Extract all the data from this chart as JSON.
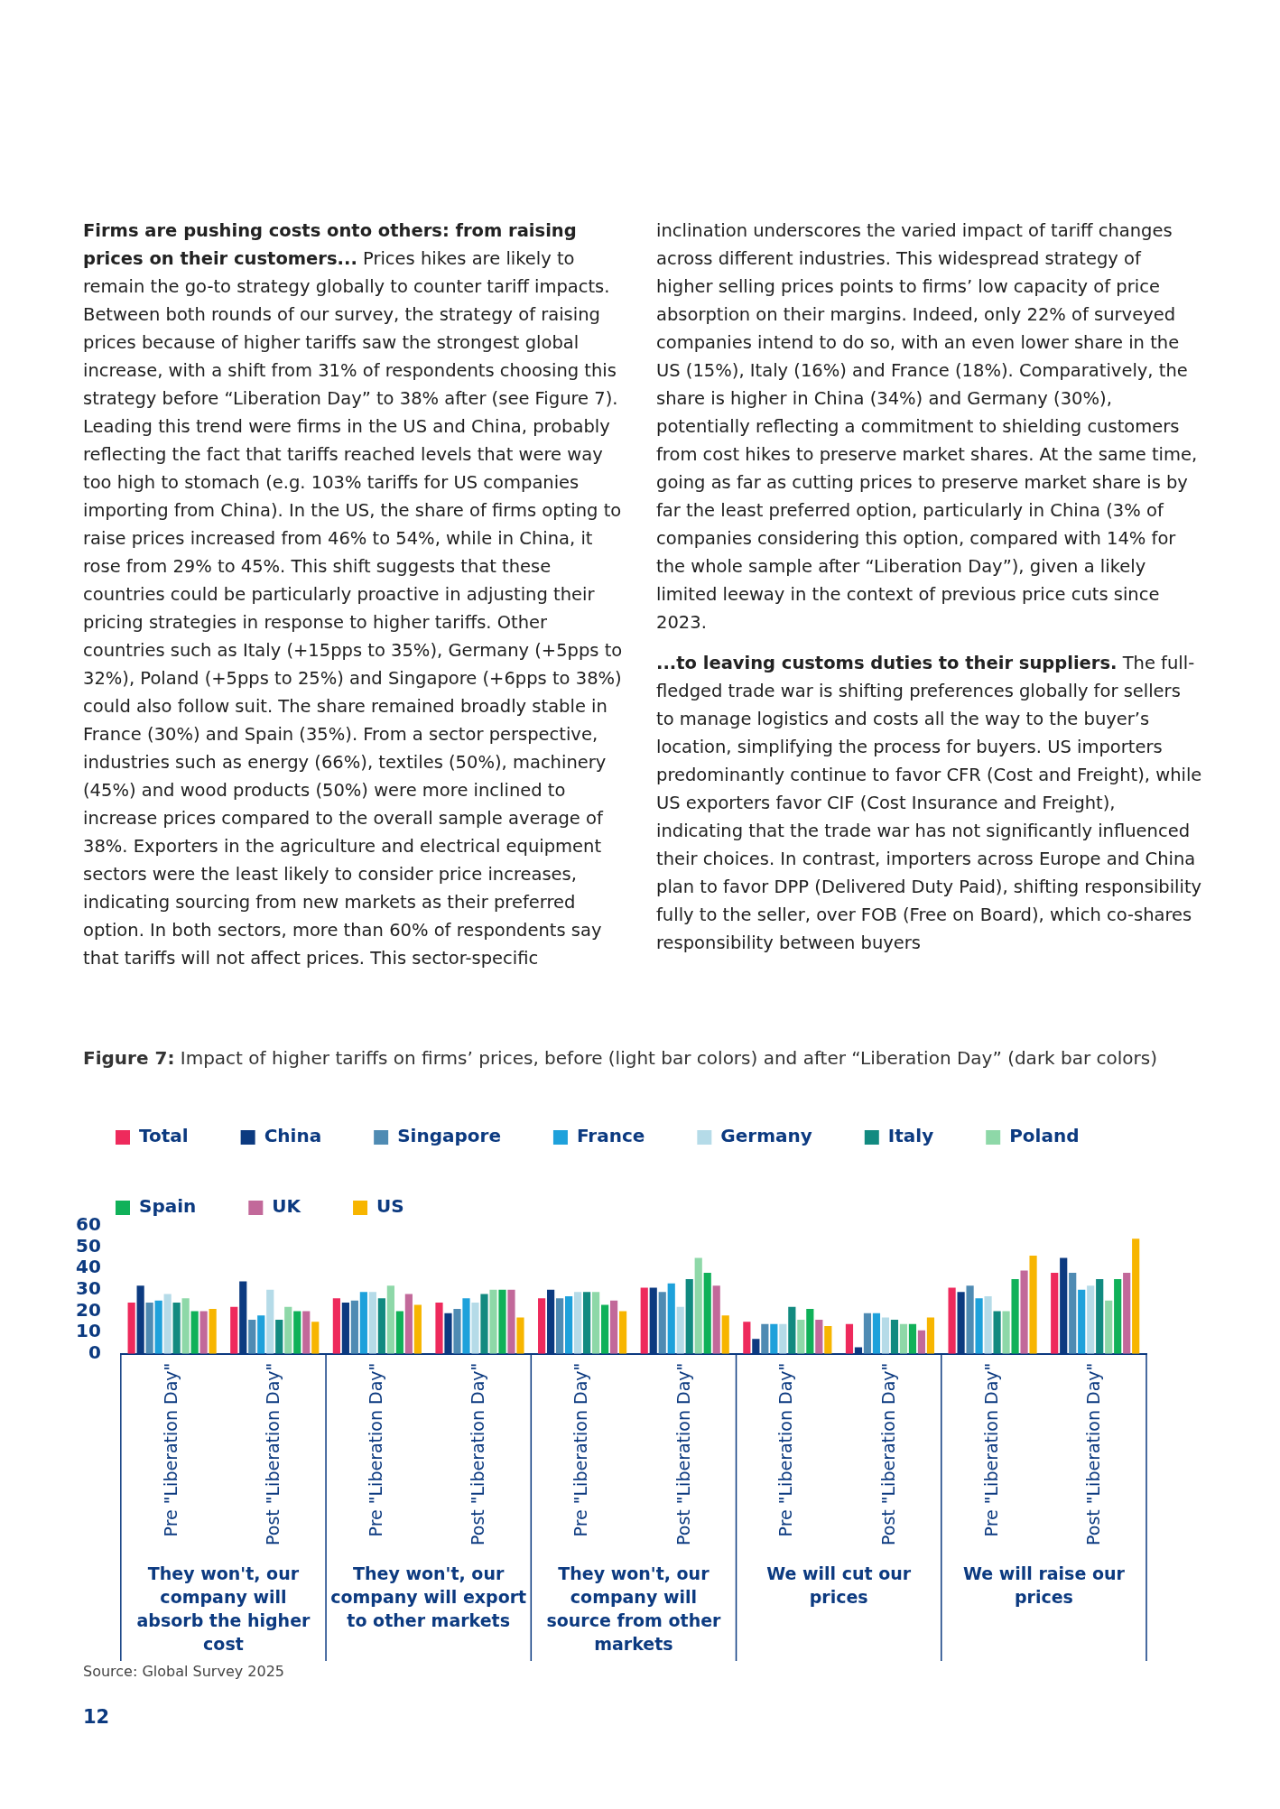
{
  "chart_data": {
    "type": "bar",
    "title": "Figure 7: Impact of higher tariffs on firms’ prices, before (light bar colors) and after “Liberation Day” (dark bar colors)",
    "categories": [
      "Pre \"Liberation Day\"",
      "Post \"Liberation Day\"",
      "Pre \"Liberation Day\"",
      "Post \"Liberation Day\"",
      "Pre \"Liberation Day\"",
      "Post \"Liberation Day\"",
      "Pre \"Liberation Day\"",
      "Post \"Liberation Day\"",
      "Pre \"Liberation Day\"",
      "Post \"Liberation Day\""
    ],
    "series": [
      {
        "name": "Total",
        "color": "#ee2a5c",
        "values": [
          24,
          22,
          26,
          24,
          26,
          31,
          15,
          14,
          31,
          38
        ]
      },
      {
        "name": "China",
        "color": "#0c3a80",
        "values": [
          32,
          34,
          24,
          19,
          30,
          31,
          7,
          3,
          29,
          45
        ]
      },
      {
        "name": "Singapore",
        "color": "#4f8bb3",
        "values": [
          24,
          16,
          25,
          21,
          26,
          29,
          14,
          19,
          32,
          38
        ]
      },
      {
        "name": "France",
        "color": "#1ea1db",
        "values": [
          25,
          18,
          29,
          26,
          27,
          33,
          14,
          19,
          26,
          30
        ]
      },
      {
        "name": "Germany",
        "color": "#b5dbe8",
        "values": [
          28,
          30,
          29,
          24,
          29,
          22,
          14,
          17,
          27,
          32
        ]
      },
      {
        "name": "Italy",
        "color": "#128a80",
        "values": [
          24,
          16,
          26,
          28,
          29,
          35,
          22,
          16,
          20,
          35
        ]
      },
      {
        "name": "Poland",
        "color": "#8ed8a8",
        "values": [
          26,
          22,
          32,
          30,
          29,
          45,
          16,
          14,
          20,
          25
        ]
      },
      {
        "name": "Spain",
        "color": "#10b159",
        "values": [
          20,
          20,
          20,
          30,
          23,
          38,
          21,
          14,
          35,
          35
        ]
      },
      {
        "name": "UK",
        "color": "#c2699a",
        "values": [
          20,
          20,
          28,
          30,
          25,
          32,
          16,
          11,
          39,
          38
        ]
      },
      {
        "name": "US",
        "color": "#f7b500",
        "values": [
          21,
          15,
          23,
          17,
          20,
          18,
          13,
          17,
          46,
          54
        ]
      }
    ],
    "ylim": [
      0,
      60
    ],
    "yticks": [
      0,
      10,
      20,
      30,
      40,
      50,
      60
    ],
    "grid": false,
    "legend": "top left",
    "annotations": [
      "Firms are pushing costs onto others: from raising prices on their customers...",
      "Prices hikes are likely to remain the go-to strategy globally to counter tariff impacts. Between both rounds of our survey, the strategy of raising prices because of higher tariffs saw the strongest global increase, with a shift from 31% of respondents choosing this strategy before “Liberation Day” to 38% after (see Figure 7). Leading this trend were firms in the US and China, probably reflecting the fact that tariffs reached levels that were way too high to stomach (e.g. 103% tariffs for US companies importing from China). In the US, the share of firms opting to raise prices increased from 46% to 54%, while in China, it rose from 29% to 45%. This shift suggests that these countries could be particularly proactive in adjusting their pricing strategies in response to higher tariffs. Other countries such as Italy (+15pps to 35%), Germany (+5pps to 32%), Poland (+5pps to 25%) and Singapore (+6pps to 38%) could also follow suit. The share remained broadly stable in France (30%) and Spain (35%). From a sector perspective, industries such as energy (66%), textiles (50%), machinery (45%) and wood products (50%) were more inclined to increase prices compared to the overall sample average of 38%. Exporters in the agriculture and electrical equipment sectors were the least likely to consider price increases, indicating sourcing from new markets as their preferred option. In both sectors, more than 60% of respondents say that tariffs will not affect prices. This sector-specific inclination underscores the varied impact of tariff changes across different industries. This widespread strategy of higher selling prices points to firms’ low capacity of price absorption on their margins. Indeed, only 22% of surveyed companies intend to do so, with an even lower share in the US (15%), Italy (16%) and France (18%). Comparatively, the share is higher in China (34%) and Germany (30%), potentially reflecting a commitment to shielding customers from cost hikes to preserve market shares. At the same time, going as far as cutting prices to preserve market share is by far the least preferred option, particularly in China (3% of companies considering this option, compared with 14% for the whole sample after “Liberation Day”), given a likely limited leeway in the context of previous price cuts since 2023.",
      "...to leaving customs duties to their suppliers.",
      "The full-fledged trade war is shifting preferences globally for sellers to manage logistics and costs all the way to the buyer’s location, simplifying the process for buyers. US importers predominantly continue to favor CFR (Cost and Freight), while US exporters favor CIF (Cost Insurance and Freight), indicating that the trade war has not significantly influenced their choices. In contrast, importers across Europe and China plan to favor DPP (Delivered Duty Paid), shifting responsibility fully to the seller, over FOB (Free on Board), which co-shares responsibility between buyers",
      "They won't, our company will absorb the higher cost",
      "They won't, our company will export to other markets",
      "They won't, our company will source from other markets",
      "We will cut our prices",
      "We will raise our prices",
      "Source: Global Survey 2025",
      "12"
    ]
  }
}
